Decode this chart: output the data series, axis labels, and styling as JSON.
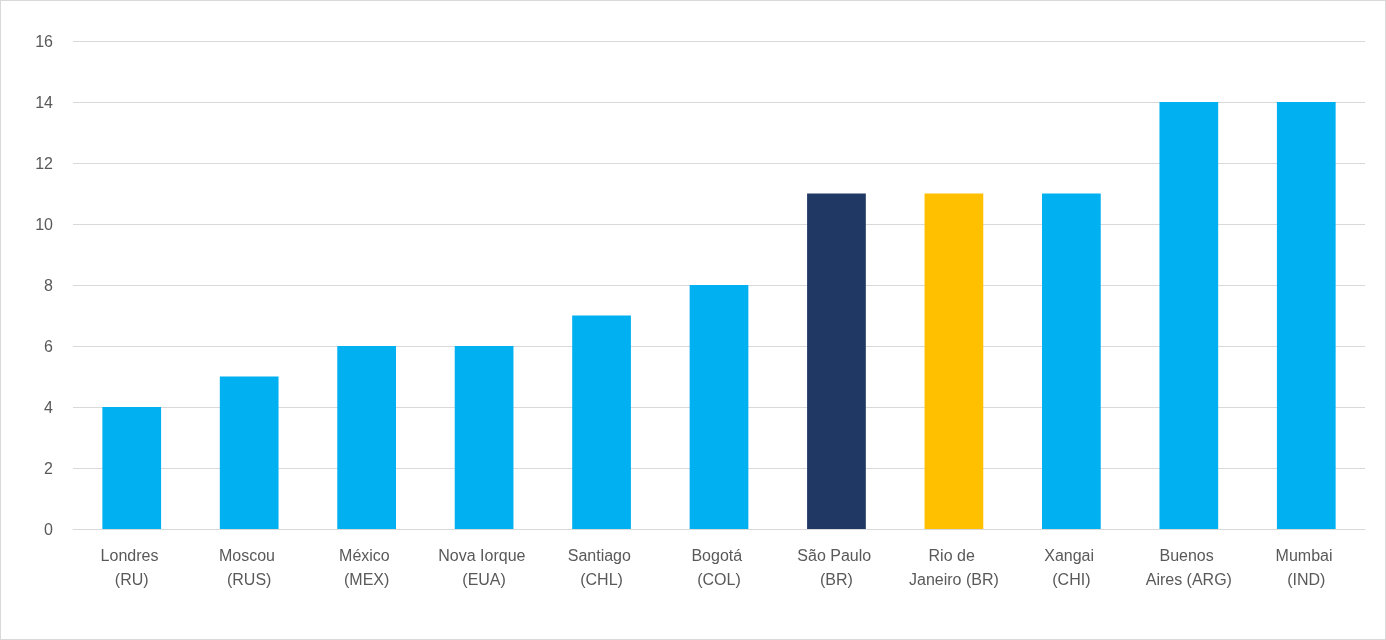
{
  "chart_data": {
    "type": "bar",
    "categories": [
      "Londres (RU)",
      "Moscou (RUS)",
      "México (MEX)",
      "Nova Iorque (EUA)",
      "Santiago (CHL)",
      "Bogotá (COL)",
      "São Paulo (BR)",
      "Rio de Janeiro (BR)",
      "Xangai (CHI)",
      "Buenos Aires (ARG)",
      "Mumbai (IND)"
    ],
    "values": [
      4,
      5,
      6,
      6,
      7,
      8,
      11,
      11,
      11,
      14,
      14
    ],
    "colors": [
      "#00b0f0",
      "#00b0f0",
      "#00b0f0",
      "#00b0f0",
      "#00b0f0",
      "#00b0f0",
      "#1f3864",
      "#ffc000",
      "#00b0f0",
      "#00b0f0",
      "#00b0f0"
    ],
    "ylim": [
      0,
      16
    ],
    "yticks": [
      0,
      2,
      4,
      6,
      8,
      10,
      12,
      14,
      16
    ],
    "grid": "y"
  }
}
